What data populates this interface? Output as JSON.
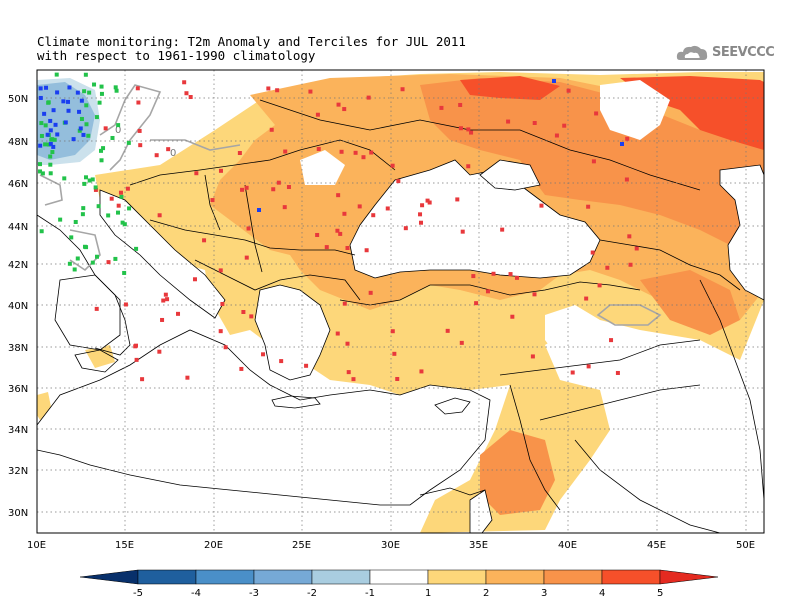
{
  "title": {
    "line1": "Climate monitoring: T2m Anomaly and Terciles for JUL 2011",
    "line2": "with respect to 1961-1990 climatology"
  },
  "logo": {
    "text": "SEEVCCC",
    "icon": "cloud-icon"
  },
  "map": {
    "lon_range": [
      10,
      51
    ],
    "lat_range": [
      29,
      51.5
    ],
    "lat_labels": [
      "50N",
      "48N",
      "46N",
      "44N",
      "42N",
      "40N",
      "38N",
      "36N",
      "34N",
      "32N",
      "30N"
    ],
    "lon_labels": [
      "10E",
      "15E",
      "20E",
      "25E",
      "30E",
      "35E",
      "40E",
      "45E",
      "50E"
    ],
    "contour_labels": [
      "0",
      "0"
    ]
  },
  "colorbar": {
    "labels": [
      "-5",
      "-4",
      "-3",
      "-2",
      "-1",
      "1",
      "2",
      "3",
      "4",
      "5"
    ],
    "colors": [
      "#08306b",
      "#1f5f9e",
      "#4a8fc8",
      "#76a9d6",
      "#a9cde0",
      "#ffffff",
      "#fdd77a",
      "#fbb35b",
      "#f8934a",
      "#f6502a",
      "#e42a20"
    ]
  },
  "colors": {
    "anom_1_2": "#fdd77a",
    "anom_2_3": "#fbb35b",
    "anom_3_4": "#f8934a",
    "anom_4_5": "#f6502a",
    "anom_neg_1_2": "#a9cde0",
    "anom_neg_2_3": "#76a9d6",
    "tercile_upper": "#e8383c",
    "tercile_middle": "#22c24a",
    "tercile_lower": "#1a3ef0"
  }
}
